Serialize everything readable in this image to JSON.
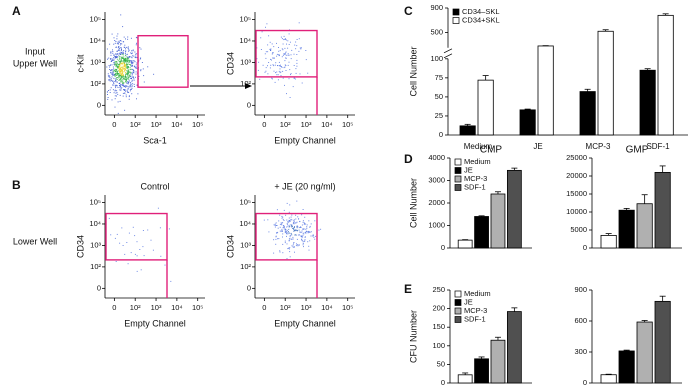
{
  "panel_labels": [
    "A",
    "B",
    "C",
    "D",
    "E"
  ],
  "row_labels": {
    "upper": [
      "Input",
      "Upper Well"
    ],
    "lower": "Lower Well"
  },
  "chart_data": [
    {
      "type": "flow",
      "xlabel": "Sca-1",
      "ylabel": "c-Kit",
      "xscale": "biexponential",
      "yscale": "biexponential",
      "xticks": [
        0,
        {
          "value": 100,
          "label": "10²"
        },
        {
          "value": 1000,
          "label": "10³"
        },
        {
          "value": 10000,
          "label": "10⁴"
        },
        {
          "value": 100000,
          "label": "10⁵"
        }
      ],
      "yticks": [
        0,
        {
          "value": 100,
          "label": "10²"
        },
        {
          "value": 1000,
          "label": "10³"
        },
        {
          "value": 10000,
          "label": "10⁴"
        },
        {
          "value": 100000,
          "label": "10⁵"
        }
      ]
    },
    {
      "type": "flow",
      "xlabel": "Empty Channel",
      "ylabel": "CD34",
      "xscale": "biexponential",
      "yscale": "biexponential",
      "xticks": [
        0,
        {
          "value": 100,
          "label": "10²"
        },
        {
          "value": 1000,
          "label": "10³"
        },
        {
          "value": 10000,
          "label": "10⁴"
        },
        {
          "value": 100000,
          "label": "10⁵"
        }
      ],
      "yticks": [
        0,
        {
          "value": 100,
          "label": "10²"
        },
        {
          "value": 1000,
          "label": "10³"
        },
        {
          "value": 10000,
          "label": "10⁴"
        },
        {
          "value": 100000,
          "label": "10⁵"
        }
      ]
    },
    {
      "type": "flow",
      "title": "Control",
      "xlabel": "Empty Channel",
      "ylabel": "CD34",
      "xscale": "biexponential",
      "yscale": "biexponential",
      "xticks": [
        0,
        {
          "value": 100,
          "label": "10²"
        },
        {
          "value": 1000,
          "label": "10³"
        },
        {
          "value": 10000,
          "label": "10⁴"
        },
        {
          "value": 100000,
          "label": "10⁵"
        }
      ],
      "yticks": [
        0,
        {
          "value": 100,
          "label": "10²"
        },
        {
          "value": 1000,
          "label": "10³"
        },
        {
          "value": 10000,
          "label": "10⁴"
        },
        {
          "value": 100000,
          "label": "10⁵"
        }
      ]
    },
    {
      "type": "flow",
      "title": "+ JE (20 ng/ml)",
      "xlabel": "Empty Channel",
      "ylabel": "CD34",
      "xscale": "biexponential",
      "yscale": "biexponential",
      "xticks": [
        0,
        {
          "value": 100,
          "label": "10²"
        },
        {
          "value": 1000,
          "label": "10³"
        },
        {
          "value": 10000,
          "label": "10⁴"
        },
        {
          "value": 100000,
          "label": "10⁵"
        }
      ],
      "yticks": [
        0,
        {
          "value": 100,
          "label": "10²"
        },
        {
          "value": 1000,
          "label": "10³"
        },
        {
          "value": 10000,
          "label": "10⁴"
        },
        {
          "value": 100000,
          "label": "10⁵"
        }
      ]
    },
    {
      "type": "bar",
      "ylabel": "Cell Number",
      "categories": [
        "Medium",
        "JE",
        "MCP-3",
        "SDF-1"
      ],
      "series": [
        {
          "name": "CD34–SKL",
          "color": "#000000",
          "values": [
            12,
            33,
            57,
            85
          ],
          "errors": [
            2,
            1,
            3,
            2
          ]
        },
        {
          "name": "CD34+SKL",
          "color": "#ffffff",
          "values": [
            72,
            280,
            520,
            780
          ],
          "errors": [
            6,
            5,
            25,
            25
          ]
        }
      ],
      "ylim": [
        0,
        900
      ],
      "axis_break": [
        100,
        250
      ],
      "yticks": [
        0,
        25,
        50,
        75,
        100,
        500,
        900
      ],
      "legend": "upper-left"
    },
    {
      "type": "bar",
      "title": "CMP",
      "ylabel": "Cell Number",
      "series": [
        {
          "name": "Medium",
          "color": "#ffffff",
          "values": [
            350
          ],
          "errors": [
            20
          ]
        },
        {
          "name": "JE",
          "color": "#000000",
          "values": [
            1400
          ],
          "errors": [
            30
          ]
        },
        {
          "name": "MCP-3",
          "color": "#b0b0b0",
          "values": [
            2400
          ],
          "errors": [
            100
          ]
        },
        {
          "name": "SDF-1",
          "color": "#505050",
          "values": [
            3450
          ],
          "errors": [
            100
          ]
        }
      ],
      "ylim": [
        0,
        4000
      ],
      "yticks": [
        0,
        1000,
        2000,
        3000,
        4000
      ],
      "legend": "upper-left"
    },
    {
      "type": "bar",
      "title": "GMP",
      "series": [
        {
          "color": "#ffffff",
          "values": [
            3500
          ],
          "errors": [
            500
          ]
        },
        {
          "color": "#000000",
          "values": [
            10500
          ],
          "errors": [
            500
          ]
        },
        {
          "color": "#b0b0b0",
          "values": [
            12300
          ],
          "errors": [
            2500
          ]
        },
        {
          "color": "#505050",
          "values": [
            21000
          ],
          "errors": [
            1800
          ]
        }
      ],
      "ylim": [
        0,
        25000
      ],
      "yticks": [
        0,
        5000,
        10000,
        15000,
        20000,
        25000
      ]
    },
    {
      "type": "bar",
      "ylabel": "CFU Number",
      "series": [
        {
          "name": "Medium",
          "color": "#ffffff",
          "values": [
            22
          ],
          "errors": [
            5
          ]
        },
        {
          "name": "JE",
          "color": "#000000",
          "values": [
            65
          ],
          "errors": [
            5
          ]
        },
        {
          "name": "MCP-3",
          "color": "#b0b0b0",
          "values": [
            115
          ],
          "errors": [
            8
          ]
        },
        {
          "name": "SDF-1",
          "color": "#505050",
          "values": [
            192
          ],
          "errors": [
            10
          ]
        }
      ],
      "ylim": [
        0,
        250
      ],
      "yticks": [
        0,
        50,
        100,
        150,
        200,
        250
      ],
      "legend": "upper-left"
    },
    {
      "type": "bar",
      "series": [
        {
          "color": "#ffffff",
          "values": [
            80
          ],
          "errors": [
            5
          ]
        },
        {
          "color": "#000000",
          "values": [
            310
          ],
          "errors": [
            8
          ]
        },
        {
          "color": "#b0b0b0",
          "values": [
            590
          ],
          "errors": [
            15
          ]
        },
        {
          "color": "#505050",
          "values": [
            790
          ],
          "errors": [
            50
          ]
        }
      ],
      "ylim": [
        0,
        900
      ],
      "yticks": [
        0,
        300,
        600,
        900
      ]
    }
  ]
}
